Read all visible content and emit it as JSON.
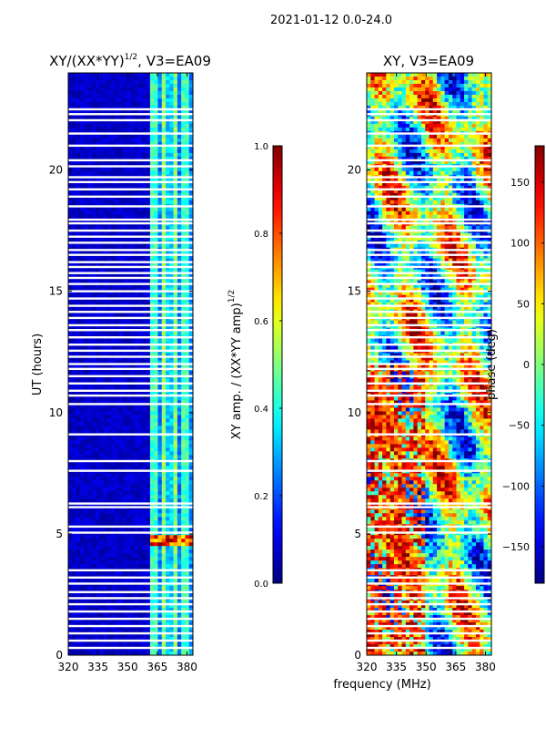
{
  "suptitle": "2021-01-12 0.0-24.0",
  "chart_data": [
    {
      "type": "heatmap",
      "title_main": "XY/(XX*YY)",
      "title_exp": "1/2",
      "title_suffix": ", V3=EA09",
      "xlabel": "",
      "ylabel": "UT (hours)",
      "xlim": [
        320,
        383
      ],
      "ylim": [
        0,
        24
      ],
      "xticks": [
        320,
        335,
        350,
        365,
        380
      ],
      "yticks": [
        0,
        5,
        10,
        15,
        20
      ],
      "colorbar": {
        "label_main": "XY amp. / (XX*YY amp)",
        "label_exp": "1/2",
        "range": [
          0.0,
          1.0
        ],
        "ticks": [
          "0.0",
          "0.2",
          "0.4",
          "0.6",
          "0.8",
          "1.0"
        ],
        "tick_values": [
          0.0,
          0.2,
          0.4,
          0.6,
          0.8,
          1.0
        ],
        "colormap": "jet"
      }
    },
    {
      "type": "heatmap",
      "title": "XY, V3=EA09",
      "xlabel": "frequency (MHz)",
      "ylabel": "",
      "xlim": [
        320,
        383
      ],
      "ylim": [
        0,
        24
      ],
      "xticks": [
        320,
        335,
        350,
        365,
        380
      ],
      "yticks": [
        0,
        5,
        10,
        15,
        20
      ],
      "colorbar": {
        "label": "phase (deg)",
        "range": [
          -180,
          180
        ],
        "ticks": [
          "−150",
          "−100",
          "−50",
          "0",
          "50",
          "100",
          "150"
        ],
        "tick_values": [
          -150,
          -100,
          -50,
          0,
          50,
          100,
          150
        ],
        "colormap": "jet"
      }
    }
  ],
  "gap_hours": [
    0.3,
    0.6,
    0.9,
    1.2,
    1.5,
    1.8,
    2.1,
    2.35,
    2.6,
    2.95,
    3.2,
    3.5,
    5.05,
    5.3,
    6.1,
    6.25,
    7.6,
    8.0,
    9.1,
    10.35,
    10.7,
    10.9,
    11.2,
    11.5,
    11.8,
    12.0,
    12.3,
    12.55,
    12.8,
    13.1,
    13.4,
    13.6,
    13.9,
    14.15,
    14.4,
    14.7,
    15.0,
    15.3,
    15.55,
    15.75,
    16.0,
    16.2,
    16.5,
    16.7,
    17.0,
    17.25,
    17.5,
    17.8,
    17.95,
    18.5,
    18.9,
    19.2,
    19.5,
    19.7,
    20.15,
    20.4,
    21.0,
    21.5,
    22.05,
    22.3,
    22.5
  ]
}
